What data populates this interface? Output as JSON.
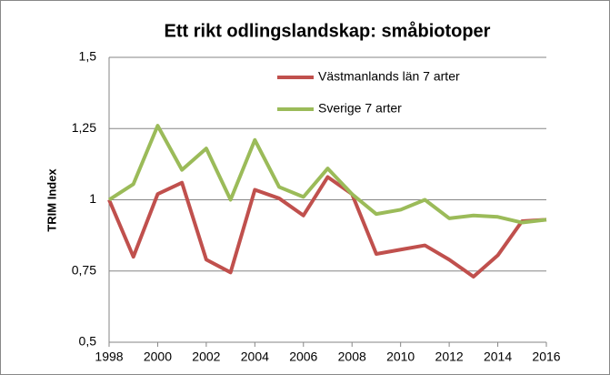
{
  "chart_data": {
    "type": "line",
    "title": "Ett rikt odlingslandskap: småbiotoper",
    "ylabel": "TRIM Index",
    "x": [
      1998,
      1999,
      2000,
      2001,
      2002,
      2003,
      2004,
      2005,
      2006,
      2007,
      2008,
      2009,
      2010,
      2011,
      2012,
      2013,
      2014,
      2015,
      2016
    ],
    "xlim": [
      1998,
      2016
    ],
    "xticks": [
      1998,
      2000,
      2002,
      2004,
      2006,
      2008,
      2010,
      2012,
      2014,
      2016
    ],
    "ylim": [
      0.5,
      1.5
    ],
    "yticks": [
      {
        "value": 0.5,
        "label": "0,5"
      },
      {
        "value": 0.75,
        "label": "0,75"
      },
      {
        "value": 1,
        "label": "1"
      },
      {
        "value": 1.25,
        "label": "1,25"
      },
      {
        "value": 1.5,
        "label": "1,5"
      }
    ],
    "grid": true,
    "legend": "upper right",
    "series": [
      {
        "name": "Västmanlands län 7 arter",
        "color": "#c0504d",
        "values": [
          1.0,
          0.8,
          1.02,
          1.06,
          0.79,
          0.745,
          1.035,
          1.005,
          0.945,
          1.08,
          1.02,
          0.81,
          0.825,
          0.84,
          0.79,
          0.73,
          0.805,
          0.925,
          0.93
        ]
      },
      {
        "name": "Sverige 7 arter",
        "color": "#9bbb59",
        "values": [
          1.0,
          1.055,
          1.26,
          1.105,
          1.18,
          1.0,
          1.21,
          1.045,
          1.01,
          1.11,
          1.02,
          0.95,
          0.965,
          1.0,
          0.935,
          0.945,
          0.94,
          0.92,
          0.93
        ]
      }
    ]
  }
}
